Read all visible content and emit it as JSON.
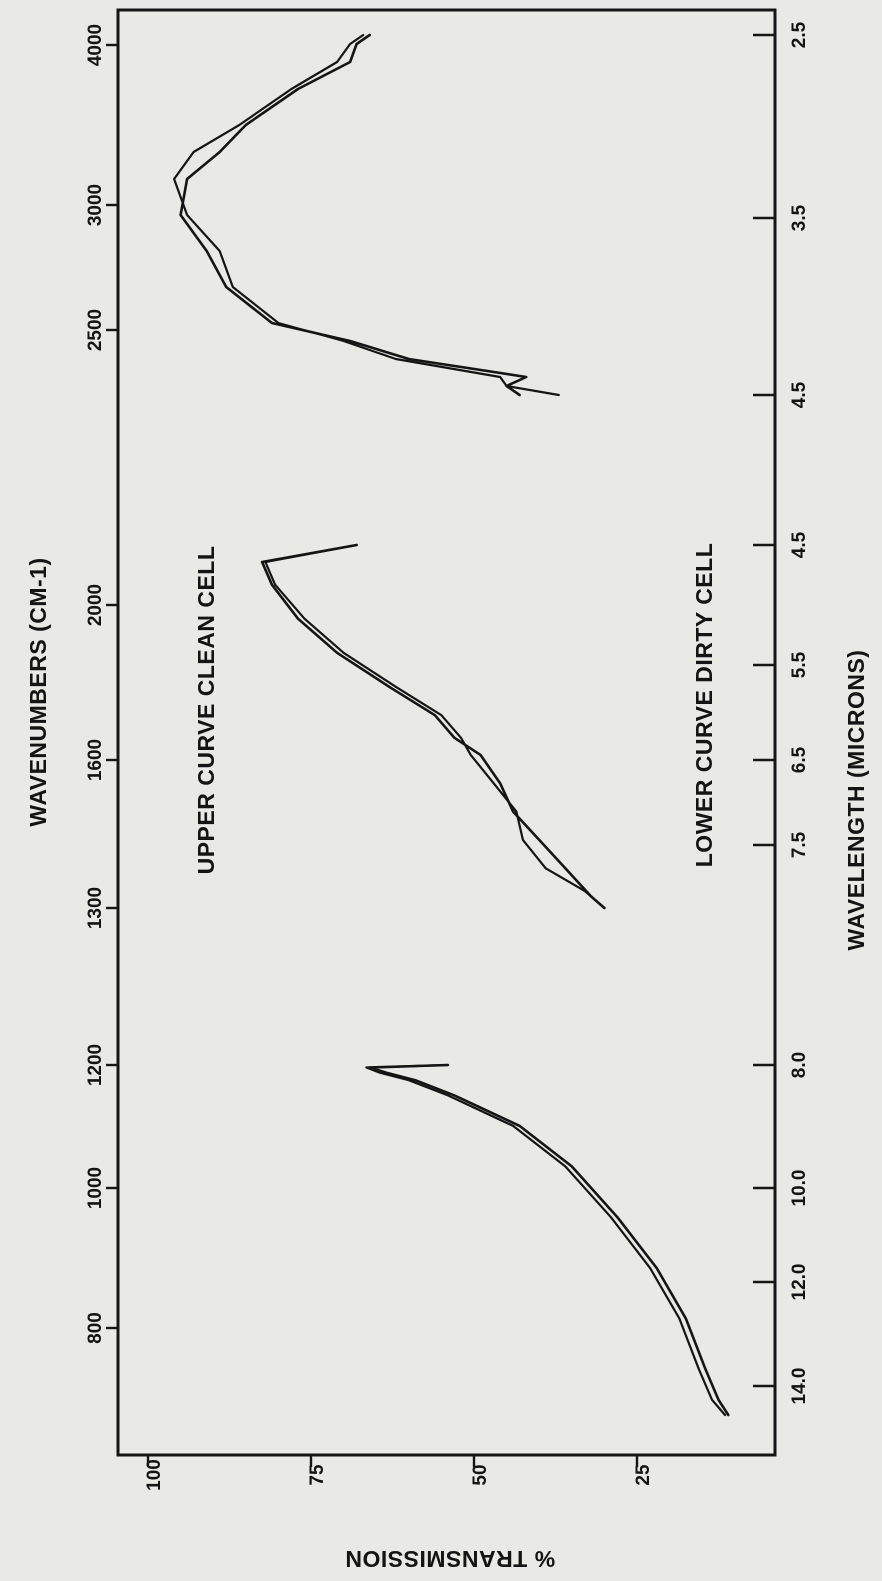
{
  "chart_data": {
    "type": "line",
    "orientation": "rotated 90 degrees clockwise; wavenumber increases toward top of page",
    "title_top_axis": "WAVENUMBERS (CM-1)",
    "ylabel": "% TRANSMISSION",
    "xlabel_bottom": "WAVELENGTH (MICRONS)",
    "ylim": [
      0,
      100
    ],
    "y_ticks": [
      "100",
      "75",
      "50",
      "25"
    ],
    "annotation_upper": "UPPER CURVE CLEAN CELL",
    "annotation_lower": "LOWER CURVE DIRTY CELL",
    "panels": [
      {
        "name": "panel-1",
        "wavenumber_ticks": [
          "800",
          "1000",
          "1200"
        ],
        "wavelength_ticks": [
          "14.0",
          "12.0",
          "10.0",
          "8.0"
        ],
        "series": [
          {
            "name": "UPPER CURVE CLEAN CELL",
            "points": [
              [
                14.9,
                11.5
              ],
              [
                14.6,
                13.5
              ],
              [
                14.0,
                15.5
              ],
              [
                13.0,
                18.5
              ],
              [
                12.0,
                23
              ],
              [
                11.0,
                29
              ],
              [
                10.0,
                36
              ],
              [
                9.2,
                44
              ],
              [
                8.6,
                54
              ],
              [
                8.3,
                60
              ],
              [
                8.15,
                64.5
              ],
              [
                8.05,
                66.5
              ],
              [
                8.0,
                54
              ]
            ]
          },
          {
            "name": "LOWER CURVE DIRTY CELL",
            "points": [
              [
                14.9,
                11
              ],
              [
                14.6,
                12.5
              ],
              [
                14.0,
                14.5
              ],
              [
                13.0,
                17.5
              ],
              [
                12.0,
                22
              ],
              [
                11.0,
                28
              ],
              [
                10.0,
                35
              ],
              [
                9.2,
                43
              ],
              [
                8.6,
                53
              ],
              [
                8.3,
                59
              ],
              [
                8.15,
                63.5
              ],
              [
                8.05,
                66
              ],
              [
                8.0,
                54
              ]
            ]
          }
        ]
      },
      {
        "name": "panel-2",
        "wavenumber_ticks": [
          "1300",
          "1600",
          "2000"
        ],
        "wavelength_ticks": [
          "7.5",
          "6.5",
          "5.5",
          "4.5"
        ],
        "series": [
          {
            "name": "UPPER CURVE CLEAN CELL",
            "points": [
              [
                7.7,
                30
              ],
              [
                7.55,
                33
              ],
              [
                7.35,
                39
              ],
              [
                7.1,
                42.5
              ],
              [
                6.85,
                43.5
              ],
              [
                6.6,
                47
              ],
              [
                6.35,
                50.5
              ],
              [
                6.2,
                52
              ],
              [
                6.0,
                55
              ],
              [
                5.75,
                62
              ],
              [
                5.45,
                70
              ],
              [
                5.15,
                76
              ],
              [
                4.85,
                80.5
              ],
              [
                4.65,
                82
              ],
              [
                4.5,
                68
              ]
            ]
          },
          {
            "name": "LOWER CURVE DIRTY CELL",
            "points": [
              [
                7.7,
                30
              ],
              [
                7.6,
                32
              ],
              [
                7.35,
                36
              ],
              [
                7.1,
                40
              ],
              [
                6.85,
                44
              ],
              [
                6.6,
                46
              ],
              [
                6.35,
                49
              ],
              [
                6.2,
                53
              ],
              [
                6.0,
                56
              ],
              [
                5.75,
                63
              ],
              [
                5.45,
                71
              ],
              [
                5.15,
                77
              ],
              [
                4.85,
                81
              ],
              [
                4.65,
                82.5
              ],
              [
                4.5,
                68
              ]
            ]
          }
        ]
      },
      {
        "name": "panel-3",
        "wavenumber_ticks": [
          "2500",
          "3000",
          "4000"
        ],
        "wavelength_ticks": [
          "4.5",
          "3.5",
          "2.5"
        ],
        "series": [
          {
            "name": "UPPER CURVE CLEAN CELL",
            "points": [
              [
                4.5,
                37
              ],
              [
                4.45,
                45
              ],
              [
                4.4,
                46
              ],
              [
                4.3,
                62
              ],
              [
                4.2,
                70
              ],
              [
                4.1,
                80
              ],
              [
                3.9,
                87
              ],
              [
                3.7,
                89
              ],
              [
                3.5,
                94
              ],
              [
                3.3,
                96
              ],
              [
                3.15,
                93
              ],
              [
                3.0,
                86
              ],
              [
                2.8,
                78
              ],
              [
                2.65,
                71
              ],
              [
                2.55,
                69
              ],
              [
                2.5,
                67
              ]
            ]
          },
          {
            "name": "LOWER CURVE DIRTY CELL",
            "points": [
              [
                4.5,
                43
              ],
              [
                4.45,
                45
              ],
              [
                4.4,
                42
              ],
              [
                4.3,
                60
              ],
              [
                4.2,
                69
              ],
              [
                4.1,
                81
              ],
              [
                3.9,
                88
              ],
              [
                3.7,
                91
              ],
              [
                3.5,
                95
              ],
              [
                3.3,
                94
              ],
              [
                3.15,
                89
              ],
              [
                3.0,
                85
              ],
              [
                2.8,
                77
              ],
              [
                2.65,
                69
              ],
              [
                2.55,
                68
              ],
              [
                2.5,
                66
              ]
            ]
          }
        ]
      }
    ]
  }
}
